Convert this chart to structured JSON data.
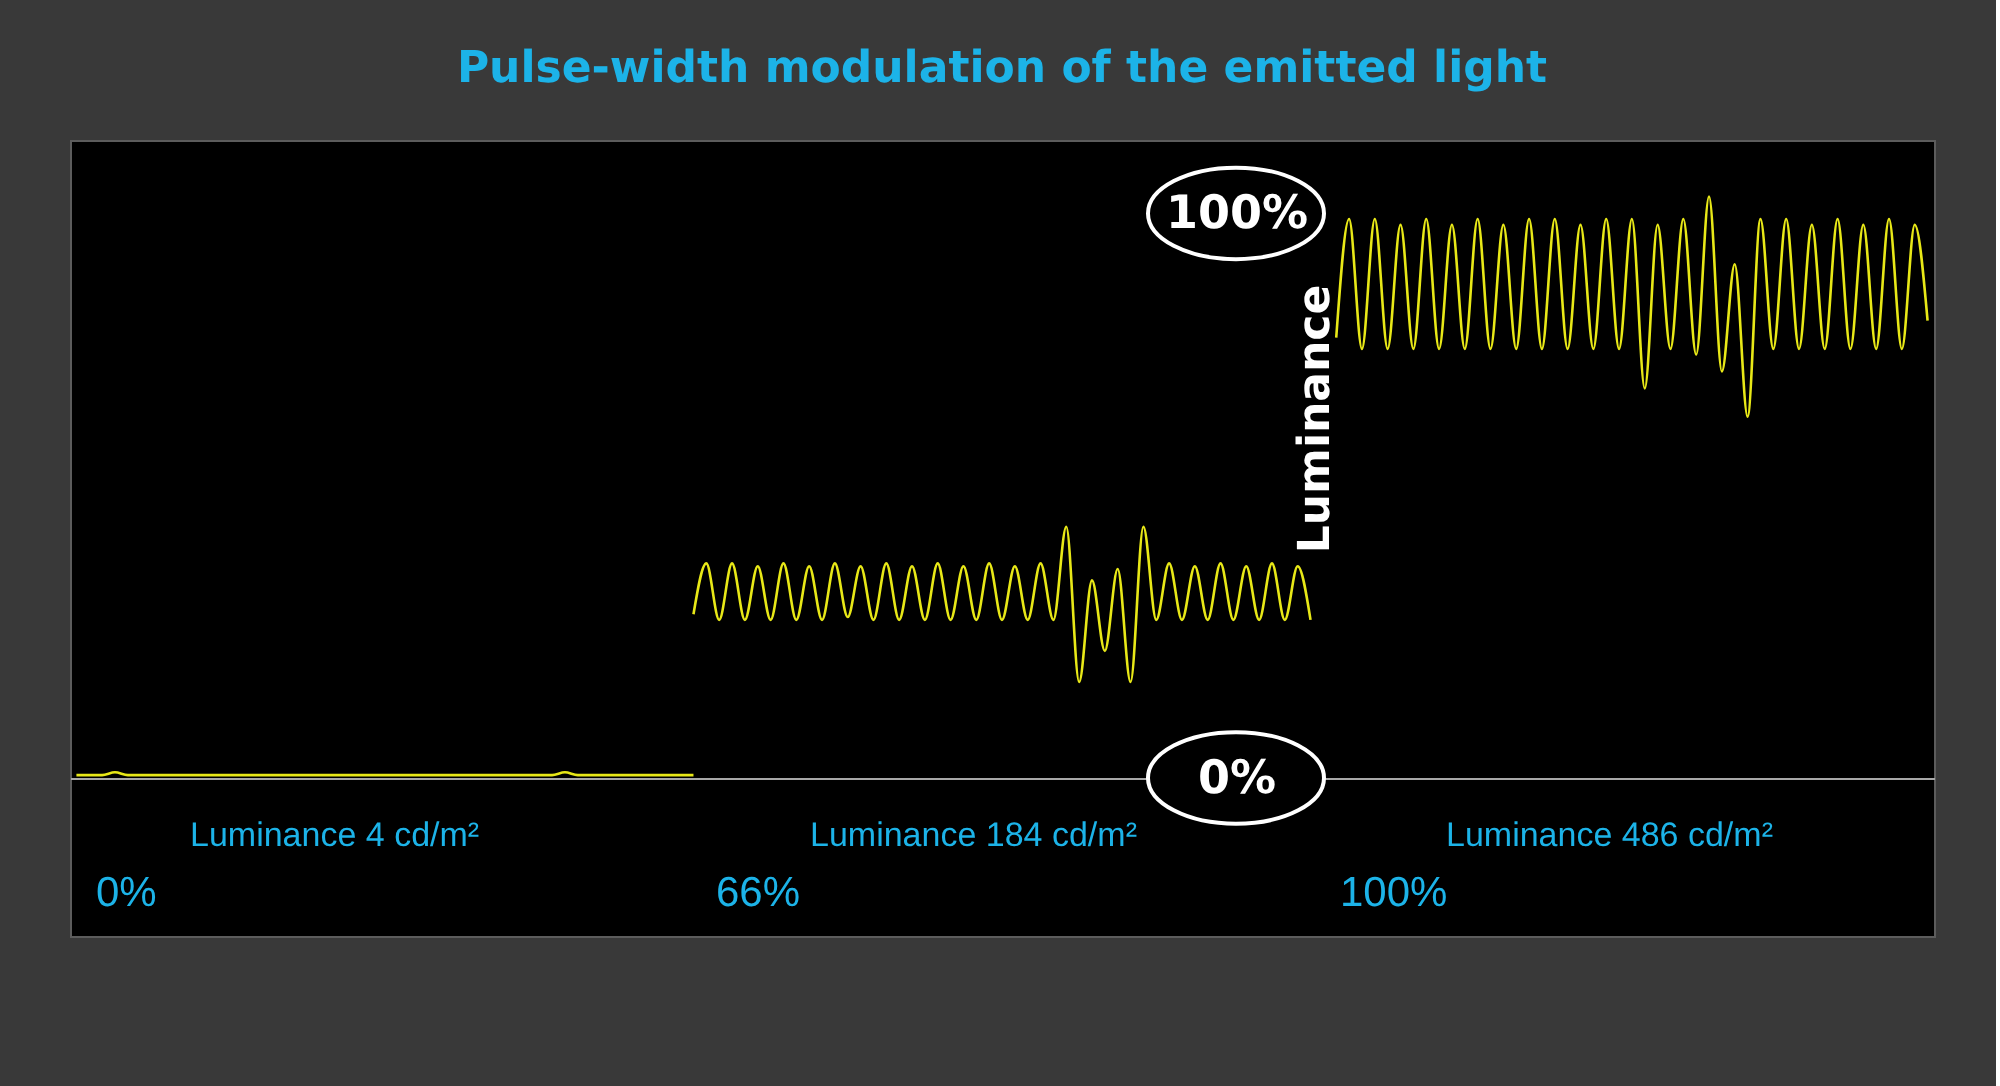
{
  "chart_data": {
    "type": "line",
    "title": "Pulse-width modulation of the emitted light",
    "categories": [
      null,
      null,
      null,
      null,
      null,
      null,
      null,
      null,
      null,
      null,
      null,
      null,
      null,
      null,
      null,
      null,
      null,
      null,
      null,
      null,
      null,
      null,
      null,
      null,
      null,
      null,
      null,
      null,
      null,
      null,
      null,
      null,
      null,
      null,
      null,
      null,
      null,
      null,
      null,
      null,
      null,
      null,
      null,
      null,
      null,
      null,
      null,
      null,
      null,
      null,
      null,
      null,
      null,
      null,
      null,
      null,
      null,
      null,
      null,
      null,
      null,
      null,
      null,
      null,
      null,
      null,
      null,
      null,
      null,
      null,
      null,
      null,
      null,
      null,
      null,
      null,
      null,
      null,
      null,
      null,
      null,
      null,
      null,
      null,
      null,
      null,
      null,
      null,
      null,
      null,
      null,
      null,
      null,
      null,
      null,
      null,
      null,
      null,
      null,
      null,
      null,
      null,
      null,
      null,
      null,
      null,
      null,
      null,
      null,
      null,
      null,
      null,
      null,
      null,
      null,
      null,
      null,
      null,
      null,
      null,
      null,
      null,
      null,
      null,
      null,
      null,
      null,
      null,
      null,
      null,
      null,
      null,
      null,
      null,
      null,
      null,
      null,
      null,
      null,
      null,
      null,
      null,
      null,
      null,
      null
    ],
    "series": [
      {
        "color": "#e8e817",
        "values": [
          0.5,
          0.5,
          0.5,
          1,
          0.5,
          0.5,
          0.5,
          0.5,
          0.5,
          0.5,
          0.5,
          0.5,
          0.5,
          0.5,
          0.5,
          0.5,
          0.5,
          0.5,
          0.5,
          0.5,
          0.5,
          0.5,
          0.5,
          0.5,
          0.5,
          0.5,
          0.5,
          0.5,
          0.5,
          0.5,
          0.5,
          0.5,
          0.5,
          0.5,
          0.5,
          0.5,
          0.5,
          0.5,
          1,
          0.5,
          0.5,
          0.5,
          0.5,
          0.5,
          0.5,
          0.5,
          0.5,
          0.5,
          0.5,
          null,
          null,
          null,
          null,
          null,
          null,
          null,
          null,
          null,
          null,
          null,
          null,
          null,
          null,
          null,
          null,
          null,
          null,
          null,
          null,
          null,
          null,
          null,
          null,
          null,
          null,
          null,
          null,
          null,
          null,
          null,
          null,
          null,
          null,
          null,
          null,
          null,
          null,
          null,
          null,
          null,
          null,
          null,
          null,
          null,
          null,
          null,
          null,
          null,
          null,
          null,
          null,
          null,
          null,
          null,
          null,
          null,
          null,
          null,
          null,
          null,
          null,
          null,
          null,
          null,
          null,
          null,
          null,
          null,
          null,
          null,
          null,
          null,
          null,
          null,
          null,
          null,
          null,
          null,
          null,
          null,
          null,
          null,
          null,
          null,
          null,
          null,
          null,
          null,
          null,
          null,
          null,
          null,
          null,
          null,
          null
        ]
      },
      {
        "color": "#e8e817",
        "values": [
          null,
          null,
          null,
          null,
          null,
          null,
          null,
          null,
          null,
          null,
          null,
          null,
          null,
          null,
          null,
          null,
          null,
          null,
          null,
          null,
          null,
          null,
          null,
          null,
          null,
          null,
          null,
          null,
          null,
          null,
          null,
          null,
          null,
          null,
          null,
          null,
          null,
          null,
          null,
          null,
          null,
          null,
          null,
          null,
          null,
          null,
          null,
          null,
          29,
          38,
          28,
          38,
          28,
          37.5,
          28,
          38,
          28,
          37.5,
          28,
          38,
          28.5,
          37.5,
          28,
          38,
          28,
          37.5,
          28,
          38,
          28,
          37.5,
          28,
          38,
          28,
          37.5,
          28,
          38,
          28,
          44.5,
          17,
          35,
          22.5,
          37,
          17,
          44.5,
          28,
          38,
          28,
          37.5,
          28,
          38,
          28,
          37.5,
          28,
          38,
          28,
          37.5,
          28,
          null,
          null,
          null,
          null,
          null,
          null,
          null,
          null,
          null,
          null,
          null,
          null,
          null,
          null,
          null,
          null,
          null,
          null,
          null,
          null,
          null,
          null,
          null,
          null,
          null,
          null,
          null,
          null,
          null,
          null,
          null,
          null,
          null,
          null,
          null,
          null,
          null,
          null,
          null,
          null,
          null,
          null,
          null,
          null,
          null,
          null,
          null,
          null
        ]
      },
      {
        "color": "#e8e817",
        "values": [
          null,
          null,
          null,
          null,
          null,
          null,
          null,
          null,
          null,
          null,
          null,
          null,
          null,
          null,
          null,
          null,
          null,
          null,
          null,
          null,
          null,
          null,
          null,
          null,
          null,
          null,
          null,
          null,
          null,
          null,
          null,
          null,
          null,
          null,
          null,
          null,
          null,
          null,
          null,
          null,
          null,
          null,
          null,
          null,
          null,
          null,
          null,
          null,
          null,
          null,
          null,
          null,
          null,
          null,
          null,
          null,
          null,
          null,
          null,
          null,
          null,
          null,
          null,
          null,
          null,
          null,
          null,
          null,
          null,
          null,
          null,
          null,
          null,
          null,
          null,
          null,
          null,
          null,
          null,
          null,
          null,
          null,
          null,
          null,
          null,
          null,
          null,
          null,
          null,
          null,
          null,
          null,
          null,
          null,
          null,
          null,
          null,
          null,
          78,
          99,
          76,
          99,
          76,
          98,
          76,
          99,
          76,
          98,
          76,
          99,
          76,
          98,
          76,
          99,
          76,
          99,
          76,
          98,
          76,
          99,
          76,
          99,
          69,
          98,
          76,
          99,
          75,
          103,
          72,
          91,
          64,
          99,
          76,
          99,
          76,
          98,
          76,
          99,
          76,
          98,
          76,
          99,
          76,
          98,
          81
        ]
      }
    ],
    "ylim": [
      -28,
      113
    ],
    "yticks": [
      {
        "value": 0,
        "label": "0%"
      },
      {
        "value": 100,
        "label": "100%"
      }
    ],
    "ylabel": "Luminance",
    "tick_labels": "y",
    "annotations": [
      "Luminance 4 cd/m²",
      "0%",
      "Luminance 184 cd/m²",
      "66%",
      "Luminance 486 cd/m²",
      "100%"
    ]
  }
}
